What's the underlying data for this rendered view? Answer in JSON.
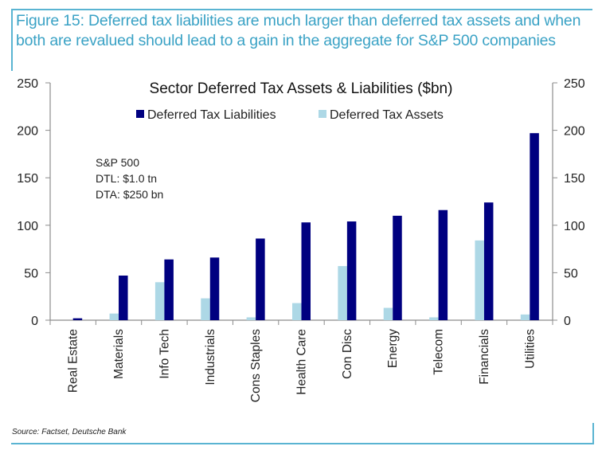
{
  "figure": {
    "title": "Figure 15: Deferred tax liabilities are much larger than deferred tax assets and when both are revalued should lead to a gain in the aggregate for S&P 500 companies",
    "source": "Source: Factset, Deutsche Bank",
    "frame_color": "#5ab4d2",
    "title_color": "#3aa2c5"
  },
  "chart_data": {
    "type": "bar",
    "title": "Sector Deferred Tax Assets & Liabilities ($bn)",
    "xlabel": "",
    "ylabel": "",
    "ylim": [
      0,
      250
    ],
    "yticks": [
      0,
      50,
      100,
      150,
      200,
      250
    ],
    "secondary_yticks": [
      0,
      50,
      100,
      150,
      200,
      250
    ],
    "grid": false,
    "legend_position": "top-center",
    "categories": [
      "Real Estate",
      "Materials",
      "Info Tech",
      "Industrials",
      "Cons Staples",
      "Health Care",
      "Con Disc",
      "Energy",
      "Telecom",
      "Financials",
      "Utilities"
    ],
    "series": [
      {
        "name": "Deferred Tax Assets",
        "color": "#add8e6",
        "values": [
          0,
          7,
          40,
          23,
          3,
          18,
          57,
          13,
          3,
          84,
          6
        ]
      },
      {
        "name": "Deferred Tax Liabilities",
        "color": "#000080",
        "values": [
          2,
          47,
          64,
          66,
          86,
          103,
          104,
          110,
          116,
          124,
          197
        ]
      }
    ],
    "legend": [
      "Deferred Tax Liabilities",
      "Deferred Tax Assets"
    ],
    "annotation": [
      "S&P 500",
      "DTL: $1.0 tn",
      "DTA: $250 bn"
    ]
  }
}
